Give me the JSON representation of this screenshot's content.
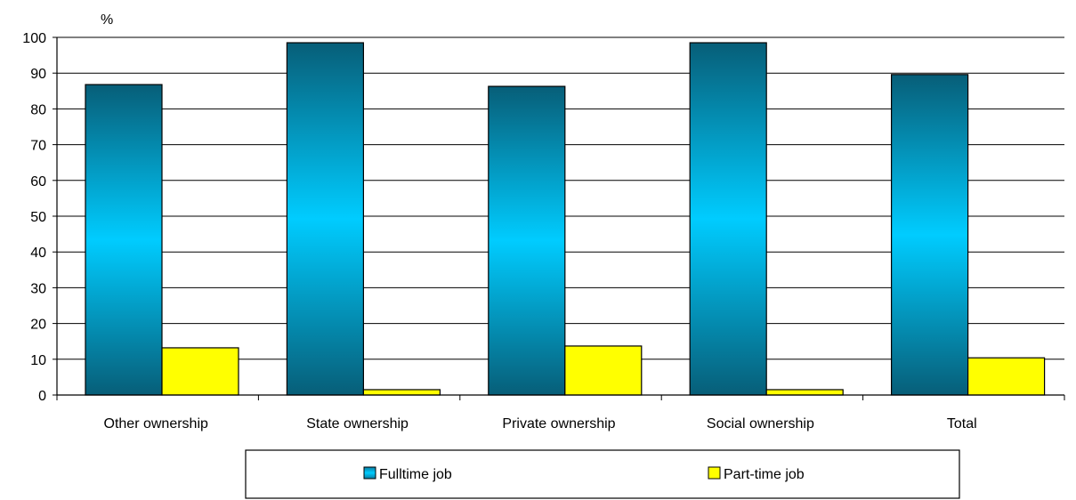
{
  "chart_data": {
    "type": "bar",
    "ylabel": "%",
    "ylim": [
      0,
      100
    ],
    "ytick_step": 10,
    "grid": true,
    "legend_position": "bottom",
    "categories": [
      "Other ownership",
      "State ownership",
      "Private ownership",
      "Social ownership",
      "Total"
    ],
    "series": [
      {
        "name": "Fulltime job",
        "values": [
          86.8,
          98.5,
          86.3,
          98.5,
          89.6
        ],
        "color": "#00CCFF",
        "color_dark": "#075E78"
      },
      {
        "name": "Part-time job",
        "values": [
          13.2,
          1.5,
          13.7,
          1.5,
          10.4
        ],
        "color": "#FFFF00"
      }
    ]
  }
}
